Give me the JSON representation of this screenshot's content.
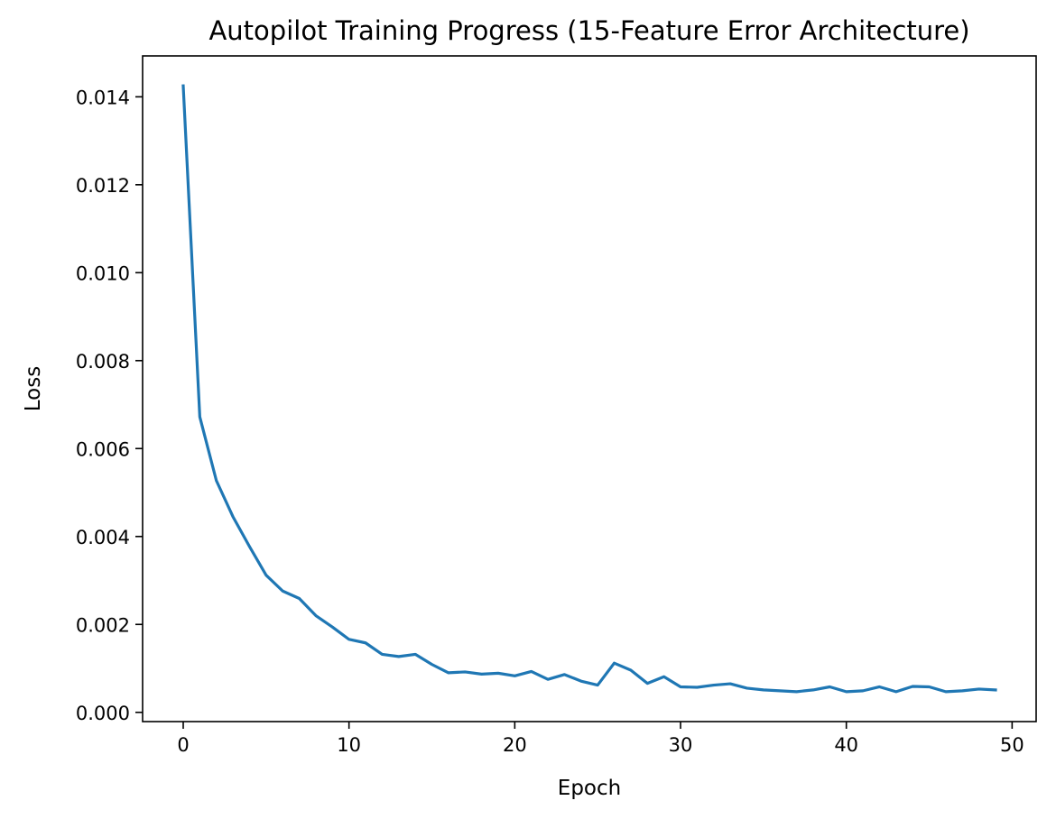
{
  "chart_data": {
    "type": "line",
    "title": "Autopilot Training Progress (15-Feature Error Architecture)",
    "xlabel": "Epoch",
    "ylabel": "Loss",
    "xlim": [
      -2.45,
      51.45
    ],
    "ylim": [
      -0.00021,
      0.01493
    ],
    "xticks": [
      0,
      10,
      20,
      30,
      40,
      50
    ],
    "xtick_labels": [
      "0",
      "10",
      "20",
      "30",
      "40",
      "50"
    ],
    "yticks": [
      0.0,
      0.002,
      0.004,
      0.006,
      0.008,
      0.01,
      0.012,
      0.014
    ],
    "ytick_labels": [
      "0.000",
      "0.002",
      "0.004",
      "0.006",
      "0.008",
      "0.010",
      "0.012",
      "0.014"
    ],
    "grid": false,
    "series": [
      {
        "color": "#1f77b4",
        "x": [
          0,
          1,
          2,
          3,
          4,
          5,
          6,
          7,
          8,
          9,
          10,
          11,
          12,
          13,
          14,
          15,
          16,
          17,
          18,
          19,
          20,
          21,
          22,
          23,
          24,
          25,
          26,
          27,
          28,
          29,
          30,
          31,
          32,
          33,
          34,
          35,
          36,
          37,
          38,
          39,
          40,
          41,
          42,
          43,
          44,
          45,
          46,
          47,
          48,
          49
        ],
        "y": [
          0.01425,
          0.00672,
          0.00527,
          0.00445,
          0.00377,
          0.00312,
          0.00276,
          0.00259,
          0.0022,
          0.00194,
          0.00166,
          0.00158,
          0.00132,
          0.00127,
          0.00132,
          0.00109,
          0.0009,
          0.00092,
          0.00087,
          0.00089,
          0.00083,
          0.00093,
          0.00075,
          0.00086,
          0.00071,
          0.00062,
          0.00112,
          0.00096,
          0.00066,
          0.00081,
          0.00058,
          0.00057,
          0.00062,
          0.00065,
          0.00055,
          0.00051,
          0.00049,
          0.00047,
          0.00051,
          0.00058,
          0.00047,
          0.00049,
          0.00058,
          0.00047,
          0.00059,
          0.00058,
          0.00047,
          0.00049,
          0.00053,
          0.00051
        ]
      }
    ]
  }
}
